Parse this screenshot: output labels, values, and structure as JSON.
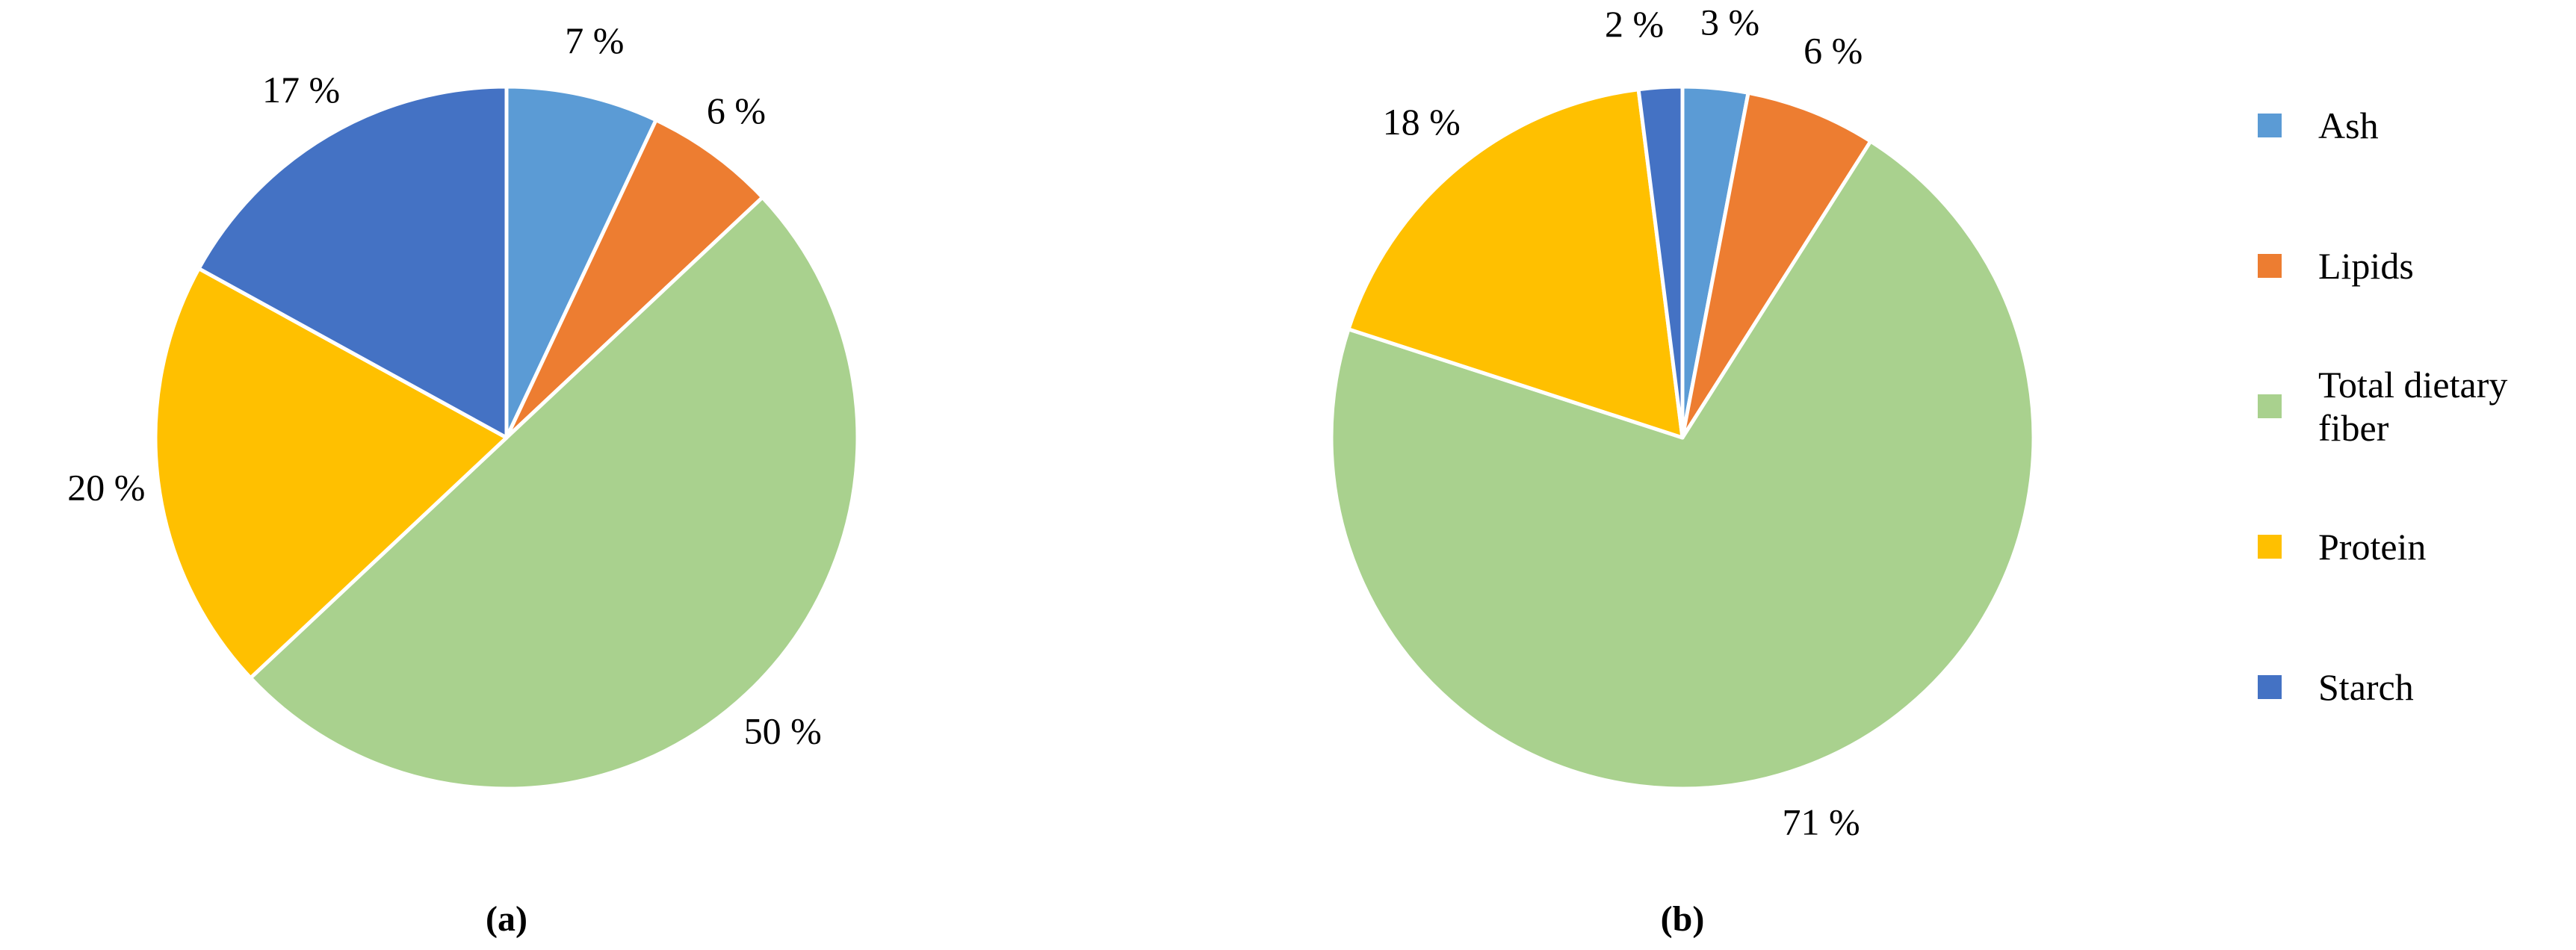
{
  "chart_data": [
    {
      "type": "pie",
      "caption": "(a)",
      "categories": [
        "Ash",
        "Lipids",
        "Total dietary fiber",
        "Protein",
        "Starch"
      ],
      "values": [
        7,
        6,
        50,
        20,
        17
      ],
      "labels": [
        "7 %",
        "6 %",
        "50 %",
        "20 %",
        "17 %"
      ]
    },
    {
      "type": "pie",
      "caption": "(b)",
      "categories": [
        "Ash",
        "Lipids",
        "Total dietary fiber",
        "Protein",
        "Starch"
      ],
      "values": [
        3,
        6,
        71,
        18,
        2
      ],
      "labels": [
        "3 %",
        "6 %",
        "71 %",
        "18 %",
        "2 %"
      ]
    }
  ],
  "legend": {
    "entries": [
      {
        "key": "ash",
        "lines": [
          "Ash"
        ],
        "color": "#5B9BD5"
      },
      {
        "key": "lipids",
        "lines": [
          "Lipids"
        ],
        "color": "#ED7D31"
      },
      {
        "key": "total-dietary-fiber",
        "lines": [
          "Total dietary",
          "fiber"
        ],
        "color": "#A9D18E"
      },
      {
        "key": "protein",
        "lines": [
          "Protein"
        ],
        "color": "#FFC000"
      },
      {
        "key": "starch",
        "lines": [
          "Starch"
        ],
        "color": "#4472C4"
      }
    ]
  }
}
